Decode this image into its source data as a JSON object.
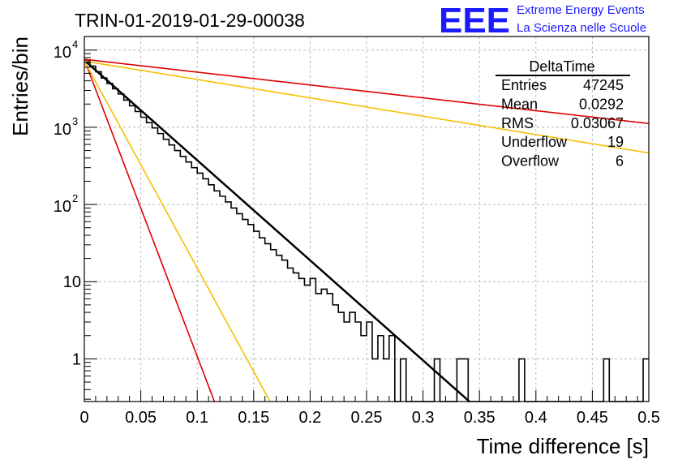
{
  "chart_data": {
    "type": "histogram",
    "title": "TRIN-01-2019-01-29-00038",
    "xlabel": "Time difference [s]",
    "ylabel": "Entries/bin",
    "xlim": [
      0,
      0.5
    ],
    "ylim": [
      0.28,
      15000
    ],
    "y_scale": "log",
    "grid": true,
    "x_ticks": [
      "0",
      "0.05",
      "0.1",
      "0.15",
      "0.2",
      "0.25",
      "0.3",
      "0.35",
      "0.4",
      "0.45",
      "0.5"
    ],
    "y_ticks": [
      {
        "value": 1,
        "label": "1"
      },
      {
        "value": 10,
        "label": "10"
      },
      {
        "value": 100,
        "base": "10",
        "exp": "2"
      },
      {
        "value": 1000,
        "base": "10",
        "exp": "3"
      },
      {
        "value": 10000,
        "base": "10",
        "exp": "4"
      }
    ],
    "histogram": {
      "bin_width": 0.005,
      "color": "#000000",
      "counts": [
        7200,
        6200,
        5250,
        4350,
        3700,
        3150,
        2700,
        2250,
        1900,
        1600,
        1350,
        1150,
        980,
        830,
        700,
        590,
        500,
        420,
        355,
        300,
        255,
        215,
        180,
        150,
        128,
        108,
        90,
        76,
        64,
        55,
        45,
        37,
        31,
        26,
        22,
        19,
        15,
        13,
        11,
        9,
        11,
        7,
        8,
        7,
        5,
        4,
        3,
        4,
        3,
        2,
        3,
        1,
        2,
        1,
        2,
        0,
        1,
        0,
        0,
        0,
        0,
        0,
        1,
        0,
        0,
        0,
        1,
        1,
        0,
        0,
        0,
        0,
        0,
        0,
        0,
        0,
        0,
        1,
        0,
        0,
        0,
        0,
        0,
        0,
        0,
        0,
        0,
        0,
        0,
        0,
        0,
        0,
        1,
        0,
        0,
        0,
        0,
        0,
        0,
        1
      ]
    },
    "curves": [
      {
        "color": "#000000",
        "y0": 7400,
        "slope": 0.0335,
        "width": 2.5
      },
      {
        "color": "#e00000",
        "y0": 7500,
        "slope": 0.0113,
        "width": 1.6
      },
      {
        "color": "#f5c000",
        "y0": 7200,
        "slope": 0.0162,
        "width": 1.6
      },
      {
        "color": "#e00000",
        "y0": 7600,
        "slope": 0.261,
        "width": 1.6
      },
      {
        "color": "#f5c000",
        "y0": 7200,
        "slope": 0.1825,
        "width": 1.6
      }
    ],
    "stats": {
      "title": "DeltaTime",
      "rows": [
        {
          "label": "Entries",
          "value": "47245"
        },
        {
          "label": "Mean",
          "value": "0.0292"
        },
        {
          "label": "RMS",
          "value": "0.03067"
        },
        {
          "label": "Underflow",
          "value": "19"
        },
        {
          "label": "Overflow",
          "value": "6"
        }
      ]
    }
  },
  "logo": {
    "mark": "EEE",
    "line1": "Extreme Energy Events",
    "line2": "La Scienza nelle Scuole",
    "color": "#1b1bff"
  }
}
